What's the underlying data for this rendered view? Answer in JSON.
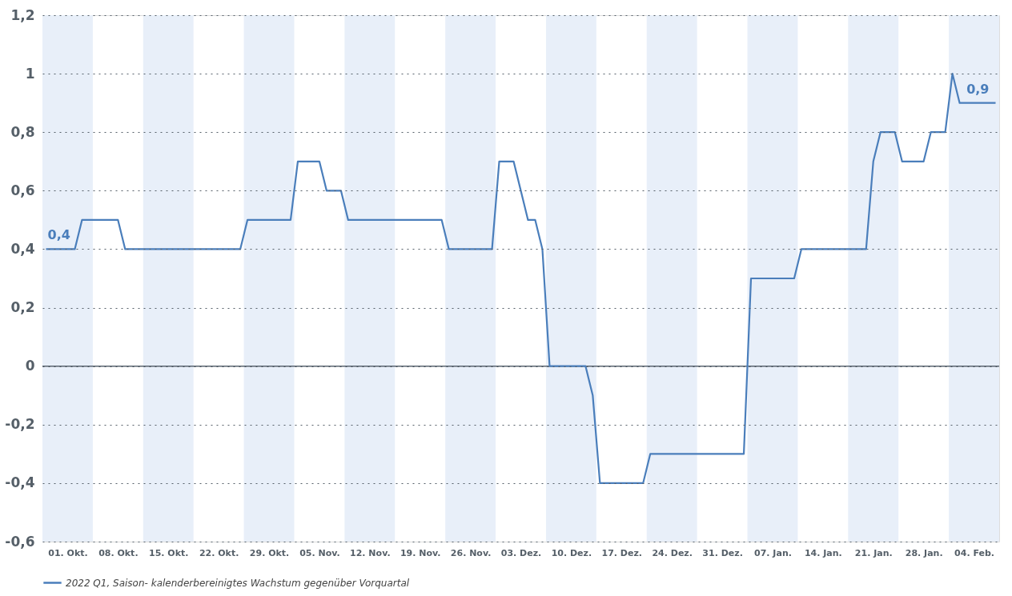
{
  "chart_data": {
    "type": "line",
    "x": [
      "2021-09-28",
      "2021-10-02",
      "2021-10-03",
      "2021-10-08",
      "2021-10-09",
      "2021-10-25",
      "2021-10-26",
      "2021-11-01",
      "2021-11-02",
      "2021-11-05",
      "2021-11-06",
      "2021-11-08",
      "2021-11-09",
      "2021-11-22",
      "2021-11-23",
      "2021-11-29",
      "2021-11-30",
      "2021-12-02",
      "2021-12-04",
      "2021-12-05",
      "2021-12-06",
      "2021-12-07",
      "2021-12-12",
      "2021-12-13",
      "2021-12-14",
      "2021-12-20",
      "2021-12-21",
      "2022-01-03",
      "2022-01-04",
      "2022-01-10",
      "2022-01-11",
      "2022-01-20",
      "2022-01-21",
      "2022-01-22",
      "2022-01-24",
      "2022-01-25",
      "2022-01-28",
      "2022-01-29",
      "2022-01-31",
      "2022-02-01",
      "2022-02-02",
      "2022-02-07"
    ],
    "series": [
      {
        "name": "2022 Q1, Saison- kalenderbereinigtes Wachstum gegenüber Vorquartal",
        "color": "#4a7ebb",
        "values": [
          0.4,
          0.4,
          0.5,
          0.5,
          0.4,
          0.4,
          0.5,
          0.5,
          0.7,
          0.7,
          0.6,
          0.6,
          0.5,
          0.5,
          0.4,
          0.4,
          0.7,
          0.7,
          0.5,
          0.5,
          0.4,
          0.0,
          0.0,
          -0.1,
          -0.4,
          -0.4,
          -0.3,
          -0.3,
          0.3,
          0.3,
          0.4,
          0.4,
          0.7,
          0.8,
          0.8,
          0.7,
          0.7,
          0.8,
          0.8,
          1.0,
          0.9,
          0.9
        ]
      }
    ],
    "xlim": [
      "2021-09-27T12:00",
      "2022-02-07T12:00"
    ],
    "xticks": [
      {
        "value": "2021-10-01",
        "label": "01. Okt."
      },
      {
        "value": "2021-10-08",
        "label": "08. Okt."
      },
      {
        "value": "2021-10-15",
        "label": "15. Okt."
      },
      {
        "value": "2021-10-22",
        "label": "22. Okt."
      },
      {
        "value": "2021-10-29",
        "label": "29. Okt."
      },
      {
        "value": "2021-11-05",
        "label": "05. Nov."
      },
      {
        "value": "2021-11-12",
        "label": "12. Nov."
      },
      {
        "value": "2021-11-19",
        "label": "19. Nov."
      },
      {
        "value": "2021-11-26",
        "label": "26. Nov."
      },
      {
        "value": "2021-12-03",
        "label": "03. Dez."
      },
      {
        "value": "2021-12-10",
        "label": "10. Dez."
      },
      {
        "value": "2021-12-17",
        "label": "17. Dez."
      },
      {
        "value": "2021-12-24",
        "label": "24. Dez."
      },
      {
        "value": "2021-12-31",
        "label": "31. Dez."
      },
      {
        "value": "2022-01-07",
        "label": "07. Jan."
      },
      {
        "value": "2022-01-14",
        "label": "14. Jan."
      },
      {
        "value": "2022-01-21",
        "label": "21. Jan."
      },
      {
        "value": "2022-01-28",
        "label": "28. Jan."
      },
      {
        "value": "2022-02-04",
        "label": "04. Feb."
      }
    ],
    "ylim": [
      -0.6,
      1.2
    ],
    "yticks": [
      {
        "value": -0.6,
        "label": "-0,6"
      },
      {
        "value": -0.4,
        "label": "-0,4"
      },
      {
        "value": -0.2,
        "label": "-0,2"
      },
      0,
      {
        "value": 0.2,
        "label": "0,2"
      },
      {
        "value": 0.4,
        "label": "0,4"
      },
      {
        "value": 0.6,
        "label": "0,6"
      },
      {
        "value": 0.8,
        "label": "0,8"
      },
      1,
      {
        "value": 1.2,
        "label": "1,2"
      }
    ],
    "bands": [
      {
        "axis": "x",
        "from": "2021-09-27T12:00",
        "to": "2021-10-04T12:00",
        "color": "#e8eff9"
      },
      {
        "axis": "x",
        "from": "2021-10-11T12:00",
        "to": "2021-10-18T12:00",
        "color": "#e8eff9"
      },
      {
        "axis": "x",
        "from": "2021-10-25T12:00",
        "to": "2021-11-01T12:00",
        "color": "#e8eff9"
      },
      {
        "axis": "x",
        "from": "2021-11-08T12:00",
        "to": "2021-11-15T12:00",
        "color": "#e8eff9"
      },
      {
        "axis": "x",
        "from": "2021-11-22T12:00",
        "to": "2021-11-29T12:00",
        "color": "#e8eff9"
      },
      {
        "axis": "x",
        "from": "2021-12-06T12:00",
        "to": "2021-12-13T12:00",
        "color": "#e8eff9"
      },
      {
        "axis": "x",
        "from": "2021-12-20T12:00",
        "to": "2021-12-27T12:00",
        "color": "#e8eff9"
      },
      {
        "axis": "x",
        "from": "2022-01-03T12:00",
        "to": "2022-01-10T12:00",
        "color": "#e8eff9"
      },
      {
        "axis": "x",
        "from": "2022-01-17T12:00",
        "to": "2022-01-24T12:00",
        "color": "#e8eff9"
      },
      {
        "axis": "x",
        "from": "2022-01-31T12:00",
        "to": "2022-02-07T12:00",
        "color": "#e8eff9"
      }
    ],
    "ref_lines": [
      {
        "axis": "y",
        "value": 0,
        "color": "#5a6570"
      }
    ],
    "annotations": [
      {
        "text": "0,4",
        "x": "2021-09-28",
        "y": 0.4
      },
      {
        "text": "0,9",
        "x": "2022-02-07",
        "y": 0.9
      }
    ],
    "grid": "y",
    "legend": "bottom",
    "line_style": "solid",
    "marker": "none"
  }
}
